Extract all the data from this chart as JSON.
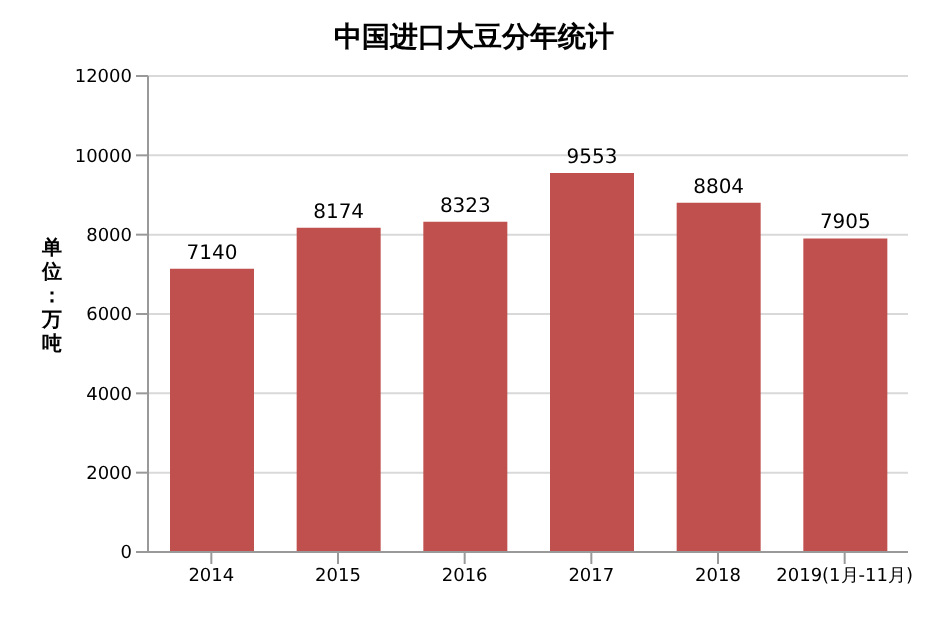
{
  "chart_data": {
    "type": "bar",
    "title": "中国进口大豆分年统计",
    "ylabel": "单位：万吨",
    "categories": [
      "2014",
      "2015",
      "2016",
      "2017",
      "2018",
      "2019(1月-11月)"
    ],
    "values": [
      7140,
      8174,
      8323,
      9553,
      8804,
      7905
    ],
    "color": "#c0504d",
    "ylim": [
      0,
      12000
    ],
    "yticks": [
      0,
      2000,
      4000,
      6000,
      8000,
      10000,
      12000
    ],
    "grid": "y",
    "data_labels": true
  }
}
